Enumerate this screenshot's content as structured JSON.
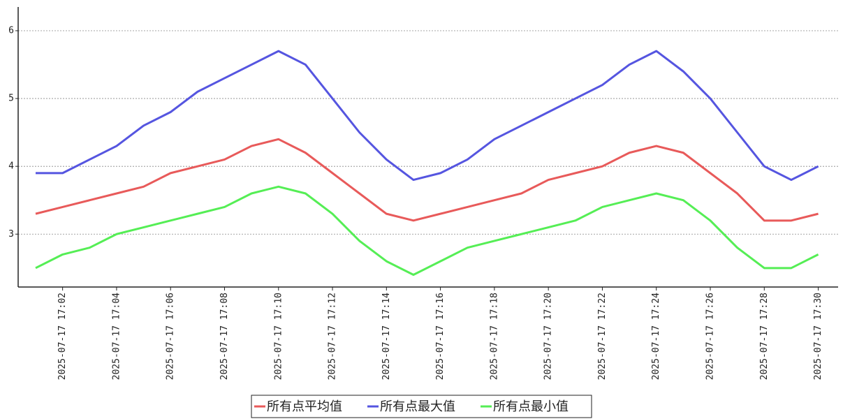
{
  "chart_data": {
    "type": "line",
    "x": [
      null,
      "2025-07-17 17:02",
      null,
      "2025-07-17 17:04",
      null,
      "2025-07-17 17:06",
      null,
      "2025-07-17 17:08",
      null,
      "2025-07-17 17:10",
      null,
      "2025-07-17 17:12",
      null,
      "2025-07-17 17:14",
      null,
      "2025-07-17 17:16",
      null,
      "2025-07-17 17:18",
      null,
      "2025-07-17 17:20",
      null,
      "2025-07-17 17:22",
      null,
      "2025-07-17 17:24",
      null,
      "2025-07-17 17:26",
      null,
      "2025-07-17 17:28",
      null,
      "2025-07-17 17:30"
    ],
    "series": [
      {
        "name": "所有点平均值",
        "color": "#e85a5a",
        "values": [
          3.3,
          3.4,
          3.5,
          3.6,
          3.7,
          3.9,
          4.0,
          4.1,
          4.3,
          4.4,
          4.2,
          3.9,
          3.6,
          3.3,
          3.2,
          3.3,
          3.4,
          3.5,
          3.6,
          3.8,
          3.9,
          4.0,
          4.2,
          4.3,
          4.2,
          3.9,
          3.6,
          3.2,
          3.2,
          3.3
        ]
      },
      {
        "name": "所有点最大值",
        "color": "#5555e0",
        "values": [
          3.9,
          3.9,
          4.1,
          4.3,
          4.6,
          4.8,
          5.1,
          5.3,
          5.5,
          5.7,
          5.5,
          5.0,
          4.5,
          4.1,
          3.8,
          3.9,
          4.1,
          4.4,
          4.6,
          4.8,
          5.0,
          5.2,
          5.5,
          5.7,
          5.4,
          5.0,
          4.5,
          4.0,
          3.8,
          4.0
        ]
      },
      {
        "name": "所有点最小值",
        "color": "#55ee55",
        "values": [
          2.5,
          2.7,
          2.8,
          3.0,
          3.1,
          3.2,
          3.3,
          3.4,
          3.6,
          3.7,
          3.6,
          3.3,
          2.9,
          2.6,
          2.4,
          2.6,
          2.8,
          2.9,
          3.0,
          3.1,
          3.2,
          3.4,
          3.5,
          3.6,
          3.5,
          3.2,
          2.8,
          2.5,
          2.5,
          2.7
        ]
      }
    ],
    "ylim": [
      2.22,
      6.35
    ],
    "yticks": [
      3,
      4,
      5,
      6
    ],
    "grid": true,
    "legend": "bottom"
  }
}
